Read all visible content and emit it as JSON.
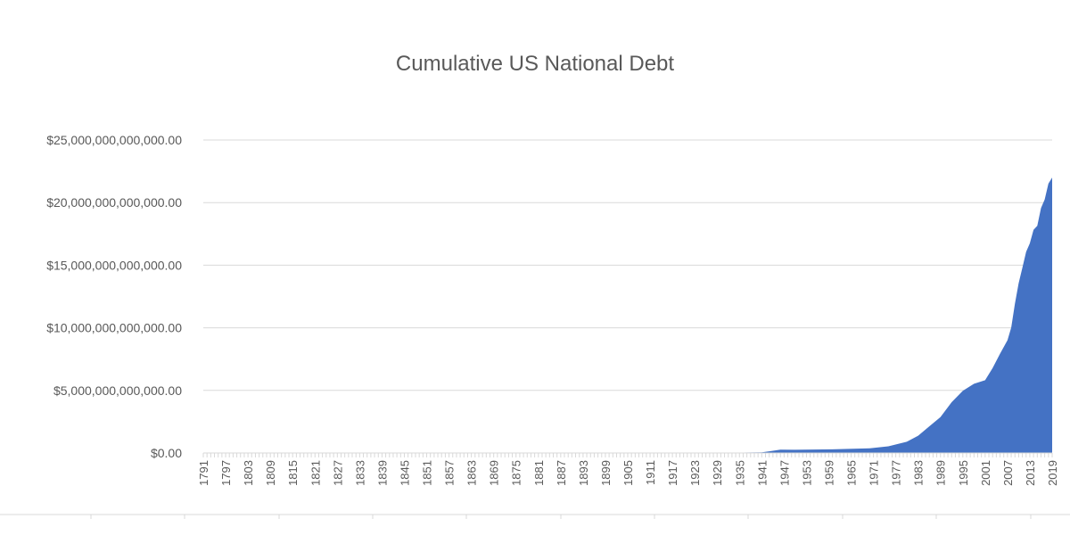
{
  "chart_data": {
    "type": "area",
    "title": "Cumulative US National Debt",
    "xlabel": "",
    "ylabel": "",
    "ylim": [
      0,
      25000000000000
    ],
    "y_ticks": [
      0,
      5000000000000,
      10000000000000,
      15000000000000,
      20000000000000,
      25000000000000
    ],
    "y_tick_labels": [
      "$0.00",
      "$5,000,000,000,000.00",
      "$10,000,000,000,000.00",
      "$15,000,000,000,000.00",
      "$20,000,000,000,000.00",
      "$25,000,000,000,000.00"
    ],
    "x_range": [
      1791,
      2019
    ],
    "x_tick_labels": [
      "1791",
      "1797",
      "1803",
      "1809",
      "1815",
      "1821",
      "1827",
      "1833",
      "1839",
      "1845",
      "1851",
      "1857",
      "1863",
      "1869",
      "1875",
      "1881",
      "1887",
      "1893",
      "1899",
      "1905",
      "1911",
      "1917",
      "1923",
      "1929",
      "1935",
      "1941",
      "1947",
      "1953",
      "1959",
      "1965",
      "1971",
      "1977",
      "1983",
      "1989",
      "1995",
      "2001",
      "2007",
      "2013",
      "2019"
    ],
    "grid": true,
    "legend": "none",
    "color": "#4472c4",
    "series": [
      {
        "points": [
          [
            1791,
            75000000
          ],
          [
            1800,
            83000000
          ],
          [
            1810,
            53000000
          ],
          [
            1816,
            127000000
          ],
          [
            1830,
            48000000
          ],
          [
            1835,
            34000
          ],
          [
            1850,
            63000000
          ],
          [
            1861,
            90000000
          ],
          [
            1866,
            2770000000
          ],
          [
            1880,
            2090000000
          ],
          [
            1893,
            961000000
          ],
          [
            1900,
            1260000000
          ],
          [
            1916,
            1230000000
          ],
          [
            1919,
            25500000000
          ],
          [
            1930,
            16200000000
          ],
          [
            1936,
            33800000000
          ],
          [
            1941,
            49000000000
          ],
          [
            1943,
            137000000000
          ],
          [
            1946,
            269000000000
          ],
          [
            1950,
            257000000000
          ],
          [
            1960,
            291000000000
          ],
          [
            1970,
            371000000000
          ],
          [
            1975,
            533000000000
          ],
          [
            1980,
            908000000000
          ],
          [
            1983,
            1380000000000
          ],
          [
            1986,
            2130000000000
          ],
          [
            1989,
            2860000000000
          ],
          [
            1992,
            4060000000000
          ],
          [
            1995,
            4970000000000
          ],
          [
            1998,
            5530000000000
          ],
          [
            2001,
            5810000000000
          ],
          [
            2003,
            6780000000000
          ],
          [
            2005,
            7930000000000
          ],
          [
            2007,
            9010000000000
          ],
          [
            2008,
            10020000000000
          ],
          [
            2009,
            11910000000000
          ],
          [
            2010,
            13560000000000
          ],
          [
            2011,
            14790000000000
          ],
          [
            2012,
            16070000000000
          ],
          [
            2013,
            16740000000000
          ],
          [
            2014,
            17820000000000
          ],
          [
            2015,
            18150000000000
          ],
          [
            2016,
            19570000000000
          ],
          [
            2017,
            20250000000000
          ],
          [
            2018,
            21520000000000
          ],
          [
            2019,
            22000000000000
          ]
        ]
      }
    ]
  }
}
